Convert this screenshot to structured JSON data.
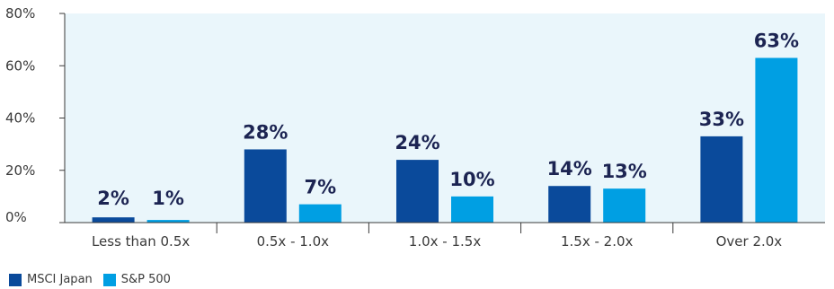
{
  "chart_data": {
    "type": "bar",
    "categories": [
      "Less than 0.5x",
      "0.5x - 1.0x",
      "1.0x - 1.5x",
      "1.5x - 2.0x",
      "Over 2.0x"
    ],
    "series": [
      {
        "name": "MSCI Japan",
        "values": [
          2,
          28,
          24,
          14,
          33
        ],
        "labels": [
          "2%",
          "28%",
          "24%",
          "14%",
          "33%"
        ],
        "color": "#0a4a9b"
      },
      {
        "name": "S&P 500",
        "values": [
          1,
          7,
          10,
          13,
          63
        ],
        "labels": [
          "1%",
          "7%",
          "10%",
          "13%",
          "63%"
        ],
        "color": "#009fe3"
      }
    ],
    "ylim": [
      0,
      80
    ],
    "yticks": [
      0,
      20,
      40,
      60,
      80
    ],
    "ytick_labels": [
      "0%",
      "20%",
      "40%",
      "60%",
      "80%"
    ],
    "plot_background": "#eaf6fb",
    "legend_position": "bottom-left"
  }
}
